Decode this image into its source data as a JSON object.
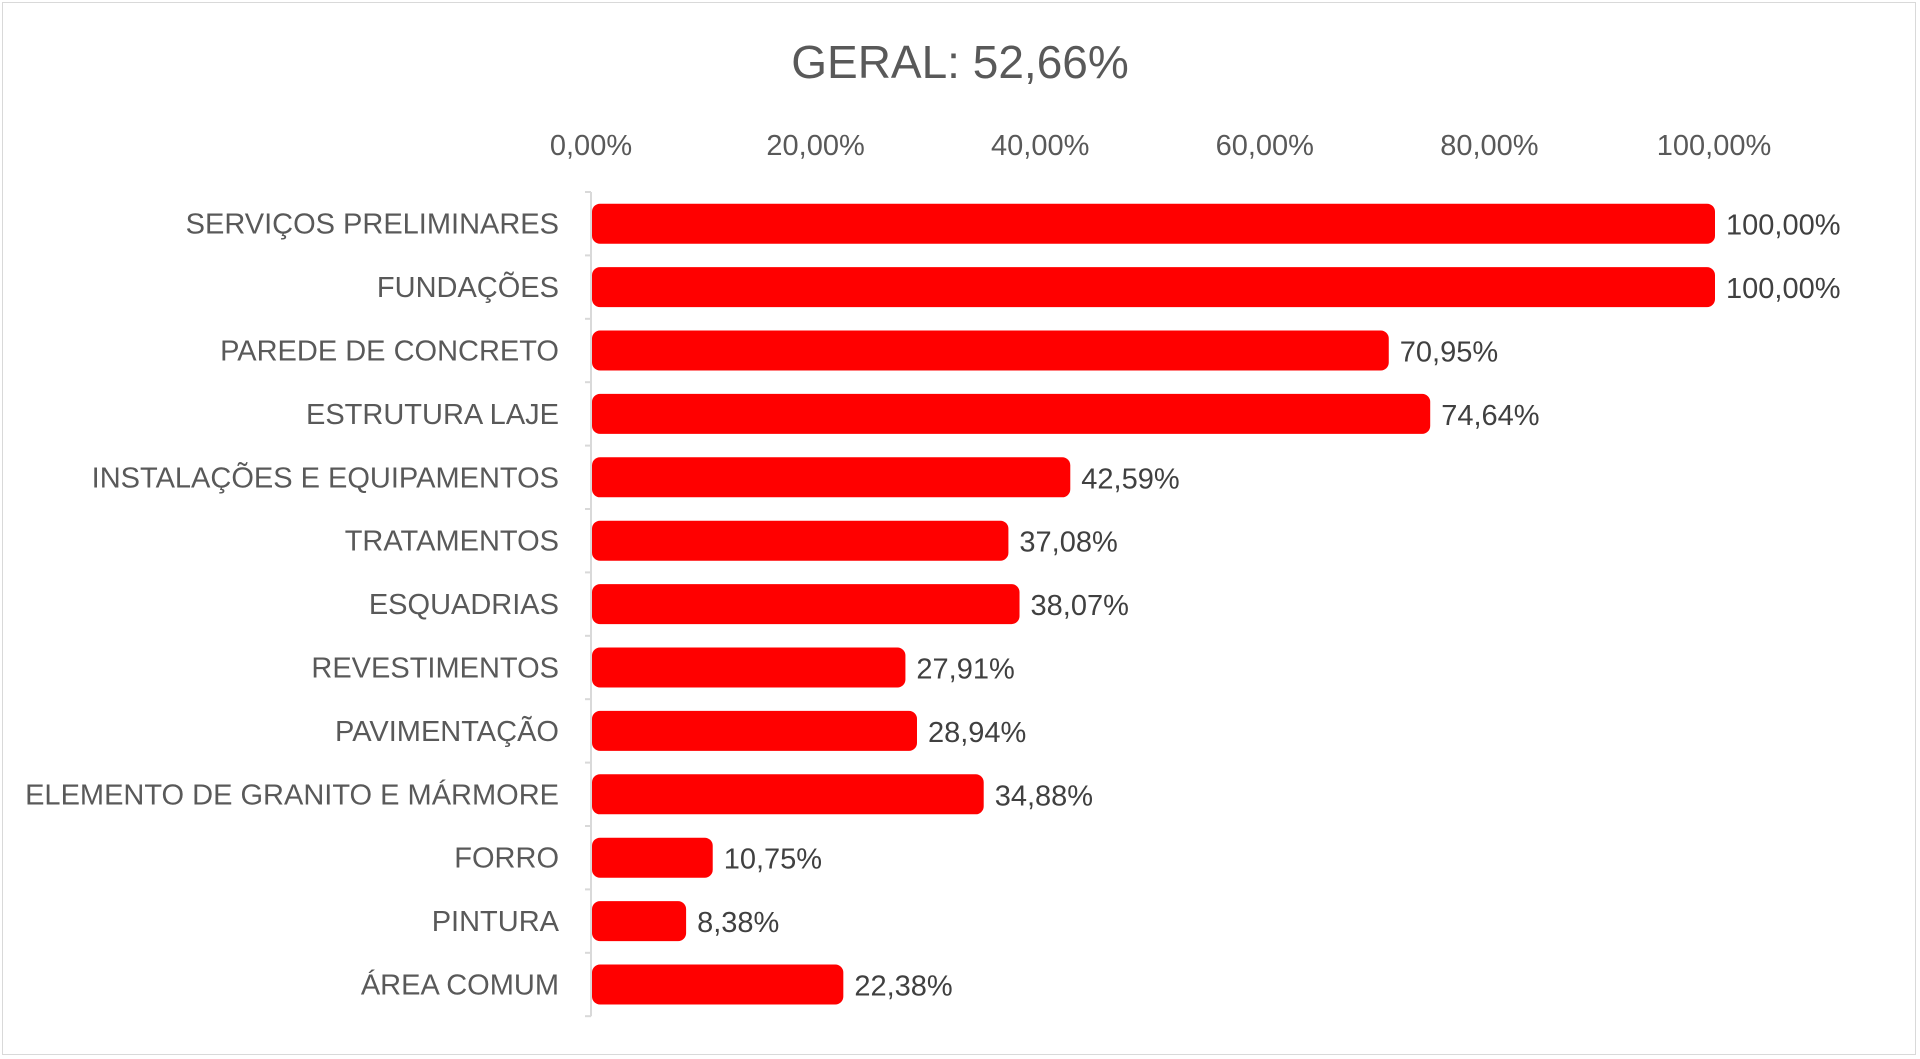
{
  "chart_data": {
    "type": "bar",
    "orientation": "horizontal",
    "title": "GERAL: 52,66%",
    "xlabel": "",
    "ylabel": "",
    "xlim": [
      0,
      100
    ],
    "x_axis_position": "top",
    "x_ticks": [
      0,
      20,
      40,
      60,
      80,
      100
    ],
    "x_tick_labels": [
      "0,00%",
      "20,00%",
      "40,00%",
      "60,00%",
      "80,00%",
      "100,00%"
    ],
    "grid": false,
    "legend": "none",
    "bar_color": "#ff0000",
    "categories": [
      "SERVIÇOS PRELIMINARES",
      "FUNDAÇÕES",
      "PAREDE DE CONCRETO",
      "ESTRUTURA LAJE",
      "INSTALAÇÕES E EQUIPAMENTOS",
      "TRATAMENTOS",
      "ESQUADRIAS",
      "REVESTIMENTOS",
      "PAVIMENTAÇÃO",
      "ELEMENTO DE GRANITO E MÁRMORE",
      "FORRO",
      "PINTURA",
      "ÁREA COMUM"
    ],
    "values": [
      100.0,
      100.0,
      70.95,
      74.64,
      42.59,
      37.08,
      38.07,
      27.91,
      28.94,
      34.88,
      10.75,
      8.38,
      22.38
    ],
    "data_labels": [
      "100,00%",
      "100,00%",
      "70,95%",
      "74,64%",
      "42,59%",
      "37,08%",
      "38,07%",
      "27,91%",
      "28,94%",
      "34,88%",
      "10,75%",
      "8,38%",
      "22,38%"
    ]
  }
}
